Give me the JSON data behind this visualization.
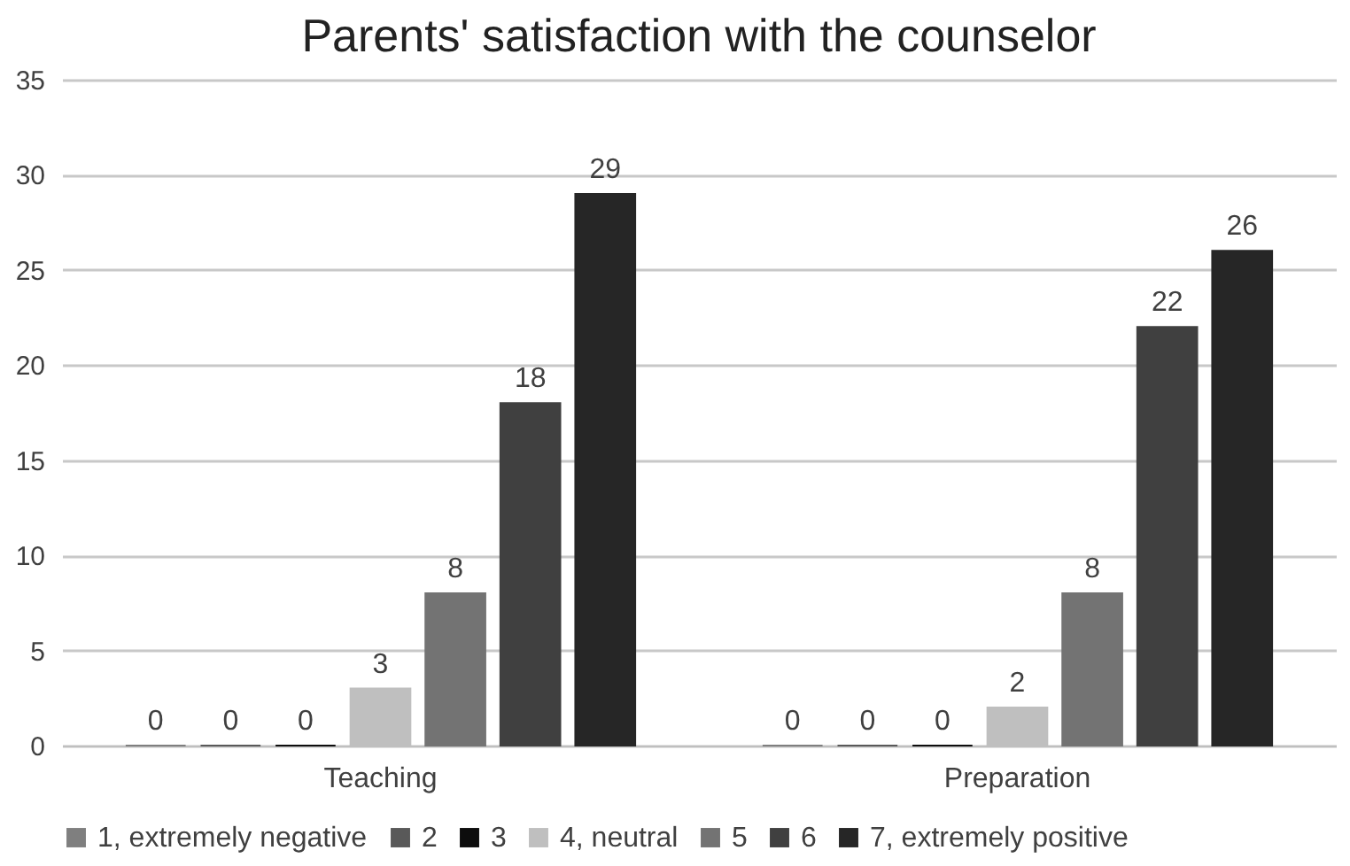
{
  "chart_data": {
    "type": "bar",
    "title": "Parents' satisfaction with the counselor",
    "categories": [
      "Teaching",
      "Preparation"
    ],
    "series": [
      {
        "name": "1, extremely negative",
        "color": "#7f7f7f",
        "values": [
          0,
          0
        ]
      },
      {
        "name": "2",
        "color": "#595959",
        "values": [
          0,
          0
        ]
      },
      {
        "name": "3",
        "color": "#0d0d0d",
        "values": [
          0,
          0
        ]
      },
      {
        "name": "4, neutral",
        "color": "#bfbfbf",
        "values": [
          3,
          2
        ]
      },
      {
        "name": "5",
        "color": "#737373",
        "values": [
          8,
          8
        ]
      },
      {
        "name": "6",
        "color": "#404040",
        "values": [
          18,
          22
        ]
      },
      {
        "name": "7, extremely positive",
        "color": "#262626",
        "values": [
          29,
          26
        ]
      }
    ],
    "ylim": [
      0,
      35
    ],
    "yticks": [
      0,
      5,
      10,
      15,
      20,
      25,
      30,
      35
    ],
    "grid": "y",
    "legend": "bottom",
    "data_labels": true
  }
}
